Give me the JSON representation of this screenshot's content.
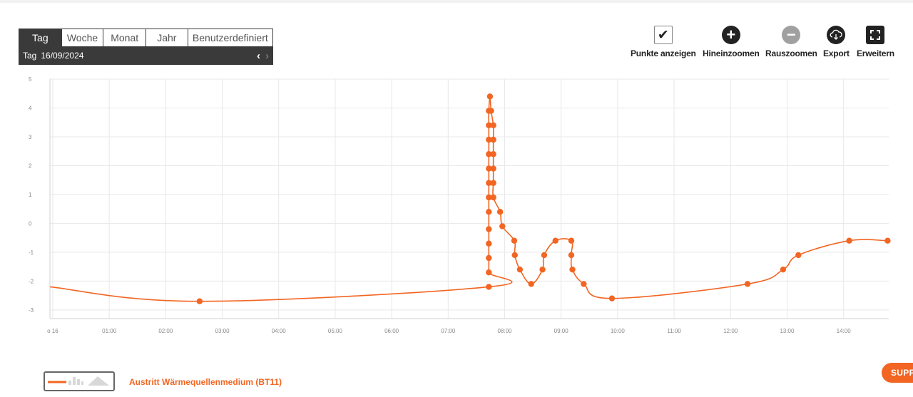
{
  "range_tabs": {
    "tabs": [
      {
        "label": "Tag",
        "active": true
      },
      {
        "label": "Woche",
        "active": false
      },
      {
        "label": "Monat",
        "active": false
      },
      {
        "label": "Jahr",
        "active": false
      },
      {
        "label": "Benutzerdefiniert",
        "active": false
      }
    ],
    "date_prefix": "Tag",
    "date_value": "16/09/2024"
  },
  "toolbar": {
    "show_points_label": "Punkte anzeigen",
    "zoom_in_label": "Hineinzoomen",
    "zoom_out_label": "Rauszoomen",
    "export_label": "Export",
    "expand_label": "Erweitern"
  },
  "support_label": "SUPP",
  "colors": {
    "series": "#f26522",
    "grid": "#e8e8e8",
    "tab_bg": "#3a3a3a"
  },
  "chart_data": {
    "type": "line",
    "grid": true,
    "legend_placement": "bottom-left",
    "x_axis": {
      "unit": "hours since 00:00",
      "range": [
        -0.05,
        14.8
      ],
      "ticks": [
        {
          "value": 0,
          "label": "o 16"
        },
        {
          "value": 1,
          "label": "01:00"
        },
        {
          "value": 2,
          "label": "02:00"
        },
        {
          "value": 3,
          "label": "03:00"
        },
        {
          "value": 4,
          "label": "04:00"
        },
        {
          "value": 5,
          "label": "05:00"
        },
        {
          "value": 6,
          "label": "06:00"
        },
        {
          "value": 7,
          "label": "07:00"
        },
        {
          "value": 8,
          "label": "08:00"
        },
        {
          "value": 9,
          "label": "09:00"
        },
        {
          "value": 10,
          "label": "10:00"
        },
        {
          "value": 11,
          "label": "11:00"
        },
        {
          "value": 12,
          "label": "12:00"
        },
        {
          "value": 13,
          "label": "13:00"
        },
        {
          "value": 14,
          "label": "14:00"
        }
      ]
    },
    "y_axis": {
      "range": [
        -3.3,
        5
      ],
      "ticks": [
        5,
        4,
        3,
        2,
        1,
        0,
        -1,
        -2,
        -3
      ]
    },
    "series": [
      {
        "name": "Austritt Wärmequellenmedium (BT11)",
        "line_start": [
          -0.05,
          -2.2
        ],
        "points": [
          [
            2.6,
            -2.7
          ],
          [
            7.72,
            -2.2
          ],
          [
            7.72,
            -1.7
          ],
          [
            7.72,
            -1.2
          ],
          [
            7.72,
            -0.7
          ],
          [
            7.72,
            -0.2
          ],
          [
            7.72,
            0.4
          ],
          [
            7.72,
            0.9
          ],
          [
            7.72,
            1.4
          ],
          [
            7.72,
            1.9
          ],
          [
            7.72,
            2.4
          ],
          [
            7.72,
            2.9
          ],
          [
            7.72,
            3.4
          ],
          [
            7.72,
            3.9
          ],
          [
            7.74,
            4.4
          ],
          [
            7.76,
            3.9
          ],
          [
            7.8,
            3.4
          ],
          [
            7.8,
            2.9
          ],
          [
            7.8,
            2.4
          ],
          [
            7.8,
            1.9
          ],
          [
            7.8,
            1.4
          ],
          [
            7.8,
            0.9
          ],
          [
            7.92,
            0.4
          ],
          [
            7.96,
            -0.1
          ],
          [
            8.17,
            -0.6
          ],
          [
            8.18,
            -1.1
          ],
          [
            8.27,
            -1.6
          ],
          [
            8.47,
            -2.1
          ],
          [
            8.67,
            -1.6
          ],
          [
            8.7,
            -1.1
          ],
          [
            8.9,
            -0.6
          ],
          [
            9.18,
            -0.6
          ],
          [
            9.18,
            -1.1
          ],
          [
            9.2,
            -1.6
          ],
          [
            9.4,
            -2.1
          ],
          [
            9.9,
            -2.6
          ],
          [
            12.3,
            -2.1
          ],
          [
            12.93,
            -1.6
          ],
          [
            13.2,
            -1.1
          ],
          [
            14.1,
            -0.6
          ],
          [
            14.78,
            -0.6
          ]
        ]
      }
    ]
  }
}
